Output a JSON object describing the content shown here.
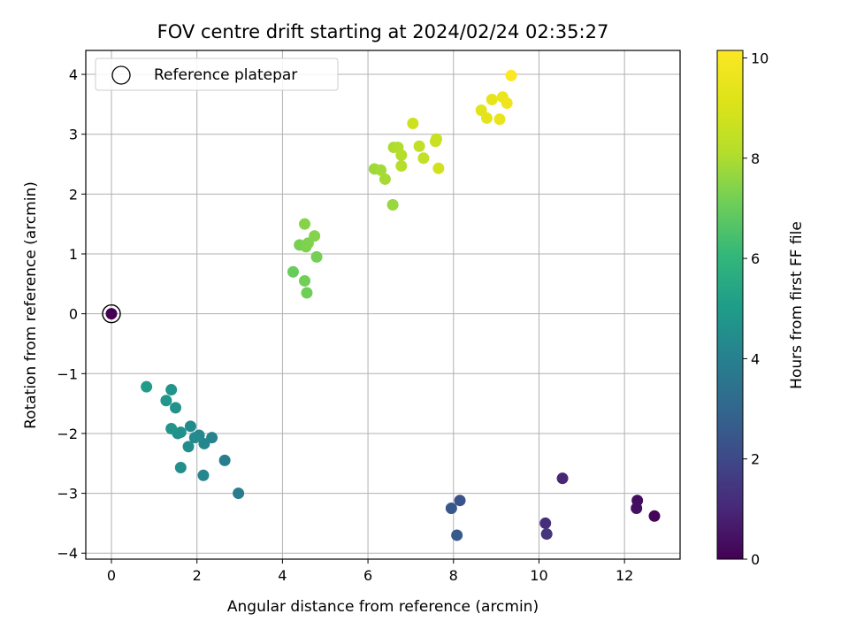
{
  "chart_data": {
    "type": "scatter",
    "title": "FOV centre drift starting at 2024/02/24 02:35:27",
    "xlabel": "Angular distance from reference (arcmin)",
    "ylabel": "Rotation from reference (arcmin)",
    "xlim": [
      -0.6,
      13.3
    ],
    "ylim": [
      -4.1,
      4.4
    ],
    "xticks": [
      0,
      2,
      4,
      6,
      8,
      10,
      12
    ],
    "yticks": [
      -4,
      -3,
      -2,
      -1,
      0,
      1,
      2,
      3,
      4
    ],
    "grid": true,
    "legend": {
      "placement": "top-left",
      "entries": [
        "Reference platepar"
      ]
    },
    "reference_point": {
      "x": 0,
      "y": 0,
      "hours": 0
    },
    "colorbar": {
      "label": "Hours from first FF file",
      "colormap": "viridis",
      "range": [
        0,
        10.15
      ],
      "ticks": [
        0,
        2,
        4,
        6,
        8,
        10
      ]
    },
    "series": [
      {
        "points": [
          {
            "x": 0.0,
            "y": 0.0,
            "hours": 0.0
          },
          {
            "x": 12.7,
            "y": -3.38,
            "hours": 0.1
          },
          {
            "x": 12.3,
            "y": -3.12,
            "hours": 0.3
          },
          {
            "x": 12.28,
            "y": -3.25,
            "hours": 0.4
          },
          {
            "x": 10.55,
            "y": -2.75,
            "hours": 1.0
          },
          {
            "x": 10.15,
            "y": -3.5,
            "hours": 1.2
          },
          {
            "x": 10.18,
            "y": -3.68,
            "hours": 1.4
          },
          {
            "x": 8.15,
            "y": -3.12,
            "hours": 2.3
          },
          {
            "x": 7.95,
            "y": -3.25,
            "hours": 2.5
          },
          {
            "x": 8.08,
            "y": -3.7,
            "hours": 2.6
          },
          {
            "x": 2.97,
            "y": -3.0,
            "hours": 3.8
          },
          {
            "x": 2.65,
            "y": -2.45,
            "hours": 3.9
          },
          {
            "x": 2.35,
            "y": -2.07,
            "hours": 4.1
          },
          {
            "x": 2.15,
            "y": -2.7,
            "hours": 4.2
          },
          {
            "x": 2.17,
            "y": -2.17,
            "hours": 4.25
          },
          {
            "x": 2.05,
            "y": -2.03,
            "hours": 4.3
          },
          {
            "x": 1.95,
            "y": -2.07,
            "hours": 4.35
          },
          {
            "x": 1.85,
            "y": -1.88,
            "hours": 4.4
          },
          {
            "x": 1.8,
            "y": -2.22,
            "hours": 4.45
          },
          {
            "x": 1.62,
            "y": -2.57,
            "hours": 4.5
          },
          {
            "x": 1.62,
            "y": -1.98,
            "hours": 4.55
          },
          {
            "x": 1.55,
            "y": -2.0,
            "hours": 4.6
          },
          {
            "x": 1.5,
            "y": -1.57,
            "hours": 4.65
          },
          {
            "x": 1.4,
            "y": -1.92,
            "hours": 4.7
          },
          {
            "x": 1.4,
            "y": -1.27,
            "hours": 4.75
          },
          {
            "x": 1.28,
            "y": -1.45,
            "hours": 4.8
          },
          {
            "x": 0.82,
            "y": -1.22,
            "hours": 5.0
          },
          {
            "x": 4.25,
            "y": 0.7,
            "hours": 7.0
          },
          {
            "x": 4.57,
            "y": 0.35,
            "hours": 7.1
          },
          {
            "x": 4.52,
            "y": 0.55,
            "hours": 7.15
          },
          {
            "x": 4.8,
            "y": 0.95,
            "hours": 7.2
          },
          {
            "x": 4.4,
            "y": 1.15,
            "hours": 7.25
          },
          {
            "x": 4.55,
            "y": 1.12,
            "hours": 7.3
          },
          {
            "x": 4.6,
            "y": 1.18,
            "hours": 7.35
          },
          {
            "x": 4.75,
            "y": 1.3,
            "hours": 7.4
          },
          {
            "x": 4.52,
            "y": 1.5,
            "hours": 7.45
          },
          {
            "x": 6.58,
            "y": 1.82,
            "hours": 7.7
          },
          {
            "x": 6.15,
            "y": 2.42,
            "hours": 7.8
          },
          {
            "x": 6.3,
            "y": 2.4,
            "hours": 7.85
          },
          {
            "x": 6.4,
            "y": 2.25,
            "hours": 7.9
          },
          {
            "x": 6.6,
            "y": 2.78,
            "hours": 8.0
          },
          {
            "x": 6.7,
            "y": 2.78,
            "hours": 8.05
          },
          {
            "x": 6.78,
            "y": 2.65,
            "hours": 8.1
          },
          {
            "x": 6.78,
            "y": 2.47,
            "hours": 8.15
          },
          {
            "x": 7.2,
            "y": 2.8,
            "hours": 8.4
          },
          {
            "x": 7.3,
            "y": 2.6,
            "hours": 8.45
          },
          {
            "x": 7.6,
            "y": 2.92,
            "hours": 8.6
          },
          {
            "x": 7.58,
            "y": 2.88,
            "hours": 8.65
          },
          {
            "x": 7.05,
            "y": 3.18,
            "hours": 8.75
          },
          {
            "x": 7.65,
            "y": 2.43,
            "hours": 8.8
          },
          {
            "x": 8.65,
            "y": 3.4,
            "hours": 9.3
          },
          {
            "x": 8.78,
            "y": 3.27,
            "hours": 9.35
          },
          {
            "x": 8.9,
            "y": 3.58,
            "hours": 9.45
          },
          {
            "x": 9.08,
            "y": 3.25,
            "hours": 9.5
          },
          {
            "x": 9.15,
            "y": 3.62,
            "hours": 9.6
          },
          {
            "x": 9.25,
            "y": 3.52,
            "hours": 9.7
          },
          {
            "x": 9.35,
            "y": 3.98,
            "hours": 10.1
          }
        ]
      }
    ]
  }
}
